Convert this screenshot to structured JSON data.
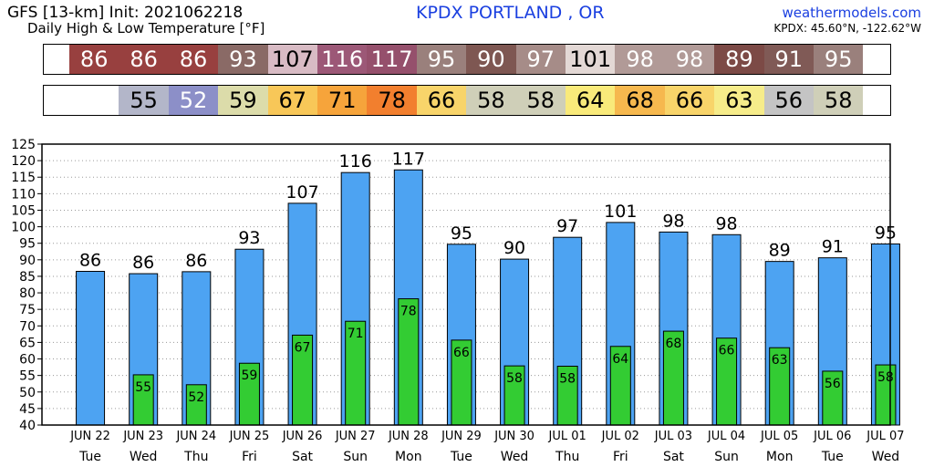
{
  "header": {
    "title": "GFS [13-km] Init: 2021062218",
    "subtitle": "Daily High & Low Temperature [°F]",
    "station": "KPDX PORTLAND       , OR",
    "site": "weathermodels.com",
    "coords": "KPDX: 45.60°N, -122.62°W"
  },
  "strips": {
    "high": [
      {
        "text": "86",
        "bg": "#98403f",
        "fg": "#ffffff"
      },
      {
        "text": "86",
        "bg": "#98403f",
        "fg": "#ffffff"
      },
      {
        "text": "86",
        "bg": "#98403f",
        "fg": "#ffffff"
      },
      {
        "text": "93",
        "bg": "#8a6a66",
        "fg": "#ffffff"
      },
      {
        "text": "107",
        "bg": "#d8bbc4",
        "fg": "#000000"
      },
      {
        "text": "116",
        "bg": "#9c5877",
        "fg": "#ffffff"
      },
      {
        "text": "117",
        "bg": "#95506c",
        "fg": "#ffffff"
      },
      {
        "text": "95",
        "bg": "#9a807c",
        "fg": "#ffffff"
      },
      {
        "text": "90",
        "bg": "#7e5752",
        "fg": "#ffffff"
      },
      {
        "text": "97",
        "bg": "#a68c88",
        "fg": "#ffffff"
      },
      {
        "text": "101",
        "bg": "#e3d8d5",
        "fg": "#000000"
      },
      {
        "text": "98",
        "bg": "#b19a97",
        "fg": "#ffffff"
      },
      {
        "text": "98",
        "bg": "#b19a97",
        "fg": "#ffffff"
      },
      {
        "text": "89",
        "bg": "#7c4a46",
        "fg": "#ffffff"
      },
      {
        "text": "91",
        "bg": "#805a56",
        "fg": "#ffffff"
      },
      {
        "text": "95",
        "bg": "#9a807c",
        "fg": "#ffffff"
      }
    ],
    "low": [
      {
        "text": "",
        "bg": "#ffffff",
        "fg": "#000000"
      },
      {
        "text": "55",
        "bg": "#b3b6c9",
        "fg": "#000000"
      },
      {
        "text": "52",
        "bg": "#8c8fc8",
        "fg": "#ffffff"
      },
      {
        "text": "59",
        "bg": "#dcdcaa",
        "fg": "#000000"
      },
      {
        "text": "67",
        "bg": "#f8c758",
        "fg": "#000000"
      },
      {
        "text": "71",
        "bg": "#f6a43b",
        "fg": "#000000"
      },
      {
        "text": "78",
        "bg": "#f27f2e",
        "fg": "#000000"
      },
      {
        "text": "66",
        "bg": "#f8d46a",
        "fg": "#000000"
      },
      {
        "text": "58",
        "bg": "#cfcfb8",
        "fg": "#000000"
      },
      {
        "text": "58",
        "bg": "#cfcfb8",
        "fg": "#000000"
      },
      {
        "text": "64",
        "bg": "#f9ea7a",
        "fg": "#000000"
      },
      {
        "text": "68",
        "bg": "#f6b84e",
        "fg": "#000000"
      },
      {
        "text": "66",
        "bg": "#f8d46a",
        "fg": "#000000"
      },
      {
        "text": "63",
        "bg": "#f6ec8a",
        "fg": "#000000"
      },
      {
        "text": "56",
        "bg": "#c4c4c4",
        "fg": "#000000"
      },
      {
        "text": "58",
        "bg": "#cfcfb8",
        "fg": "#000000"
      }
    ]
  },
  "chart_data": {
    "type": "bar",
    "title": "Daily High & Low Temperature [°F]",
    "categories": [
      "JUN 22",
      "JUN 23",
      "JUN 24",
      "JUN 25",
      "JUN 26",
      "JUN 27",
      "JUN 28",
      "JUN 29",
      "JUN 30",
      "JUL 01",
      "JUL 02",
      "JUL 03",
      "JUL 04",
      "JUL 05",
      "JUL 06",
      "JUL 07"
    ],
    "weekdays": [
      "Tue",
      "Wed",
      "Thu",
      "Fri",
      "Sat",
      "Sun",
      "Mon",
      "Tue",
      "Wed",
      "Thu",
      "Fri",
      "Sat",
      "Sun",
      "Mon",
      "Tue",
      "Wed"
    ],
    "series": [
      {
        "values": [
          86.5,
          85.8,
          86.4,
          93.2,
          107.1,
          116.4,
          117.2,
          94.7,
          90.2,
          96.8,
          101.3,
          98.4,
          97.6,
          89.5,
          90.6,
          94.8
        ],
        "labels": [
          "86",
          "86",
          "86",
          "93",
          "107",
          "116",
          "117",
          "95",
          "90",
          "97",
          "101",
          "98",
          "98",
          "89",
          "91",
          "95"
        ],
        "color": "#4da3f2"
      },
      {
        "values": [
          null,
          55.2,
          52.2,
          58.7,
          67.2,
          71.4,
          78.2,
          65.7,
          57.9,
          57.8,
          63.8,
          68.4,
          66.3,
          63.4,
          56.3,
          58.2
        ],
        "labels": [
          "",
          "55",
          "52",
          "59",
          "67",
          "71",
          "78",
          "66",
          "58",
          "58",
          "64",
          "68",
          "66",
          "63",
          "56",
          "58"
        ],
        "color": "#33cc33"
      }
    ],
    "ylim": [
      40,
      125
    ],
    "yticks": [
      "40",
      "45",
      "50",
      "55",
      "60",
      "65",
      "70",
      "75",
      "80",
      "85",
      "90",
      "95",
      "100",
      "105",
      "110",
      "115",
      "120",
      "125"
    ],
    "grid": true
  }
}
